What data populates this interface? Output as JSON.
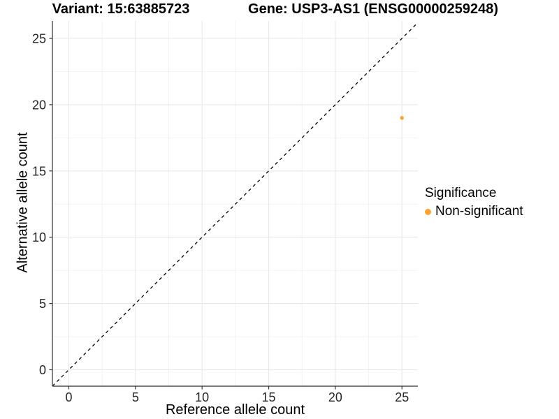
{
  "chart_data": {
    "type": "scatter",
    "title_left": "Variant: 15:63885723",
    "title_right": "Gene: USP3-AS1 (ENSG00000259248)",
    "xlabel": "Reference allele count",
    "ylabel": "Alternative allele count",
    "xlim": [
      -1.25,
      26.25
    ],
    "ylim": [
      -1.25,
      26.25
    ],
    "xticks": [
      0,
      5,
      10,
      15,
      20,
      25
    ],
    "yticks": [
      0,
      5,
      10,
      15,
      20,
      25
    ],
    "xticks_minor": [
      2.5,
      7.5,
      12.5,
      17.5,
      22.5
    ],
    "yticks_minor": [
      2.5,
      7.5,
      12.5,
      17.5,
      22.5
    ],
    "grid": "major+minor",
    "series": [
      {
        "name": "Non-significant",
        "color": "#F9A332",
        "points": [
          {
            "x": 25,
            "y": 19
          }
        ]
      }
    ],
    "reference_line": {
      "kind": "identity y=x",
      "slope": 1,
      "intercept": 0,
      "style": "dashed",
      "color": "#000000"
    },
    "legend": {
      "title": "Significance",
      "position": "right",
      "entries": [
        {
          "label": "Non-significant",
          "color": "#F9A332",
          "marker": "dot"
        }
      ]
    },
    "colors": {
      "grid_major": "#E8E8E8",
      "grid_minor": "#F2F2F2",
      "axis_line": "#4D4D4D",
      "tick_mark": "#333333",
      "tick_text": "#262626"
    }
  }
}
